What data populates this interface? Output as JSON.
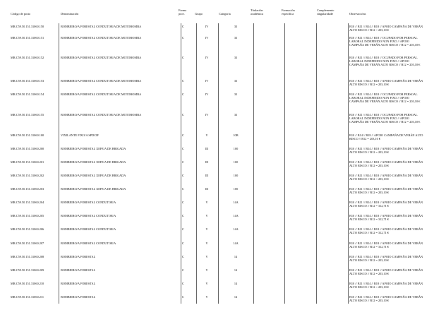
{
  "headers": {
    "codigo": "Código de posto",
    "denominacion": "Denominación",
    "forma": "Forma prov.",
    "grupo": "Grupo",
    "categoria": "Categoría",
    "titulacion": "Titulación académica",
    "formacion": "Formación específica",
    "complemento": "Complemento singularidade",
    "observaciones": "Observacións"
  },
  "rows": [
    {
      "codigo": "MR.C59.50.151.31060.150",
      "denominacion": "BOMBEIRO/A FORESTAL CONDUTOR/A DE MOTOBOMBA",
      "forma": "C",
      "grupo": "IV",
      "categoria": "33",
      "obs": "B10 // B11 // B14 // B18 // APOIO CAMPAÑA DE VERÁN ALTO RISCO // B12 = 203,10 €"
    },
    {
      "codigo": "MR.C59.50.151.31060.151",
      "denominacion": "BOMBEIRO/A FORESTAL CONDUTOR/A DE MOTOBOMBA",
      "forma": "C",
      "grupo": "IV",
      "categoria": "33",
      "obs": "B10 // B11 // B14 // B18 // OCUPADO POR PERSOAL LABORAL INDEFINIDO NON FIXO // APOIO CAMPAÑA DE VERÁN ALTO RISCO // B12 = 203,10 €"
    },
    {
      "codigo": "MR.C59.50.151.31060.152",
      "denominacion": "BOMBEIRO/A FORESTAL CONDUTOR/A DE MOTOBOMBA",
      "forma": "C",
      "grupo": "IV",
      "categoria": "33",
      "obs": "B10 // B11 // B14 // B18 // OCUPADO POR PERSOAL LABORAL INDEFINIDO NON FIXO // APOIO CAMPAÑA DE VERÁN ALTO RISCO // B12 = 203,10 €"
    },
    {
      "codigo": "MR.C59.50.151.31060.153",
      "denominacion": "BOMBEIRO/A FORESTAL CONDUTOR/A DE MOTOBOMBA",
      "forma": "C",
      "grupo": "IV",
      "categoria": "33",
      "obs": "B10 // B11 // B14 // B18 // APOIO CAMPAÑA DE VERÁN ALTO RISCO // B12 = 203,10 €"
    },
    {
      "codigo": "MR.C59.50.151.31060.154",
      "denominacion": "BOMBEIRO/A FORESTAL CONDUTOR/A DE MOTOBOMBA",
      "forma": "C",
      "grupo": "IV",
      "categoria": "33",
      "obs": "B10 // B11 // B14 // B18 // OCUPADO POR PERSOAL LABORAL INDEFINIDO NON FIXO // APOIO CAMPAÑA DE VERÁN ALTO RISCO // B12 = 203,10 €"
    },
    {
      "codigo": "MR.C59.50.151.31060.155",
      "denominacion": "BOMBEIRO/A FORESTAL CONDUTOR/A DE MOTOBOMBA",
      "forma": "C",
      "grupo": "IV",
      "categoria": "33",
      "obs": "B10 // B11 // B14 // B18 // OCUPADO POR PERSOAL LABORAL INDEFINIDO NON FIXO // APOIO CAMPAÑA DE VERÁN ALTO RISCO // B12 = 203,10 €"
    },
    {
      "codigo": "MR.C59.50.151.31060.100",
      "denominacion": "VIXILANTE FIXO/A SPDCIF",
      "forma": "C",
      "grupo": "V",
      "categoria": "10B",
      "obs": "B10 // B14 // B18 // APOIO CAMPAÑA DE VERÁN ALTO RISCO // B12 = 203,10 €"
    },
    {
      "codigo": "MR.C59.50.151.31060.200",
      "denominacion": "BOMBEIRO/A FORESTAL XEFE/A DE BRIGADA",
      "forma": "C",
      "grupo": "III",
      "categoria": "100",
      "obs": "B10 // B11 // B14 // B18 // APOIO CAMPAÑA DE VERÁN ALTO RISCO // B12 = 203,10 €"
    },
    {
      "codigo": "MR.C59.50.151.31060.201",
      "denominacion": "BOMBEIRO/A FORESTAL XEFE/A DE BRIGADA",
      "forma": "C",
      "grupo": "III",
      "categoria": "100",
      "obs": "B10 // B11 // B14 // B18 // APOIO CAMPAÑA DE VERÁN ALTO RISCO // B12 = 203,10 €"
    },
    {
      "codigo": "MR.C59.50.151.31060.202",
      "denominacion": "BOMBEIRO/A FORESTAL XEFE/A DE BRIGADA",
      "forma": "C",
      "grupo": "III",
      "categoria": "100",
      "obs": "B10 // B11 // B14 // B18 // APOIO CAMPAÑA DE VERÁN ALTO RISCO // B12 = 203,10 €"
    },
    {
      "codigo": "MR.C59.50.151.31060.203",
      "denominacion": "BOMBEIRO/A FORESTAL XEFE/A DE BRIGADA",
      "forma": "C",
      "grupo": "III",
      "categoria": "100",
      "obs": "B10 // B11 // B14 // B18 // APOIO CAMPAÑA DE VERÁN ALTO RISCO // B12 = 203,10 €"
    },
    {
      "codigo": "MR.C59.50.151.31060.204",
      "denominacion": "BOMBEIRO/A FORESTAL CONDUTOR/A",
      "forma": "C",
      "grupo": "V",
      "categoria": "14A",
      "obs": "B10 // B11 // B14 // B18 // APOIO CAMPAÑA DE VERÁN ALTO RISCO // B12 = 312,71 €"
    },
    {
      "codigo": "MR.C59.50.151.31060.205",
      "denominacion": "BOMBEIRO/A FORESTAL CONDUTOR/A",
      "forma": "C",
      "grupo": "V",
      "categoria": "14A",
      "obs": "B10 // B11 // B14 // B18 // APOIO CAMPAÑA DE VERÁN ALTO RISCO // B12 = 312,71 €"
    },
    {
      "codigo": "MR.C59.50.151.31060.206",
      "denominacion": "BOMBEIRO/A FORESTAL CONDUTOR/A",
      "forma": "C",
      "grupo": "V",
      "categoria": "14A",
      "obs": "B10 // B11 // B14 // B18 // APOIO CAMPAÑA DE VERÁN ALTO RISCO // B12 = 312,71 €"
    },
    {
      "codigo": "MR.C59.50.151.31060.207",
      "denominacion": "BOMBEIRO/A FORESTAL CONDUTOR/A",
      "forma": "C",
      "grupo": "V",
      "categoria": "14A",
      "obs": "B10 // B11 // B14 // B18 // APOIO CAMPAÑA DE VERÁN ALTO RISCO // B12 = 312,71 €"
    },
    {
      "codigo": "MR.C59.50.151.31060.208",
      "denominacion": "BOMBEIRO/A FORESTAL",
      "forma": "C",
      "grupo": "V",
      "categoria": "14",
      "obs": "B10 // B11 // B14 // B18 // APOIO CAMPAÑA DE VERÁN ALTO RISCO // B12 = 203,10 €"
    },
    {
      "codigo": "MR.C59.50.151.31060.209",
      "denominacion": "BOMBEIRO/A FORESTAL",
      "forma": "C",
      "grupo": "V",
      "categoria": "14",
      "obs": "B10 // B11 // B14 // B18 // APOIO CAMPAÑA DE VERÁN ALTO RISCO // B12 = 203,10 €"
    },
    {
      "codigo": "MR.C59.50.151.31060.210",
      "denominacion": "BOMBEIRO/A FORESTAL",
      "forma": "C",
      "grupo": "V",
      "categoria": "14",
      "obs": "B10 // B11 // B14 // B18 // APOIO CAMPAÑA DE VERÁN ALTO RISCO // B12 = 203,10 €"
    },
    {
      "codigo": "MR.C59.50.151.31060.211",
      "denominacion": "BOMBEIRO/A FORESTAL",
      "forma": "C",
      "grupo": "V",
      "categoria": "14",
      "obs": "B10 // B11 // B14 // B18 // APOIO CAMPAÑA DE VERÁN ALTO RISCO // B12 = 203,10 €"
    }
  ]
}
